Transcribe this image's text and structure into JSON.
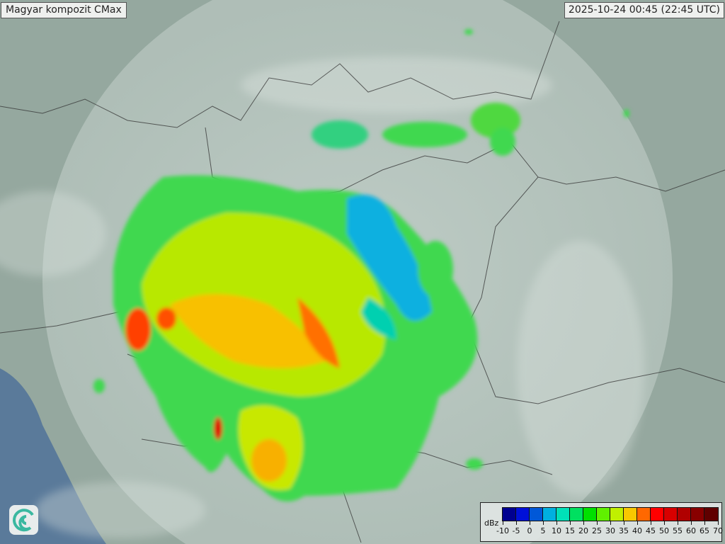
{
  "header": {
    "title": "Magyar kompozit  CMax",
    "timestamp": "2025-10-24 00:45 (22:45 UTC)"
  },
  "legend": {
    "unit": "dBz",
    "labels": [
      "-10",
      "-5",
      "0",
      "5",
      "10",
      "15",
      "20",
      "25",
      "30",
      "35",
      "40",
      "45",
      "50",
      "55",
      "60",
      "65",
      "70"
    ],
    "colors": [
      "#000090",
      "#0010d8",
      "#0058d8",
      "#00b0e0",
      "#00e0b8",
      "#00e060",
      "#00e000",
      "#60f000",
      "#c0f000",
      "#f8c800",
      "#ff6800",
      "#ff0000",
      "#d80000",
      "#b00000",
      "#880000",
      "#600000"
    ]
  },
  "logo": {
    "icon": "swirl-logo-icon"
  },
  "map": {
    "background": "#8fa39a",
    "coverage_color": "#d8e4e0",
    "sea_color": "#5a7a9a"
  }
}
